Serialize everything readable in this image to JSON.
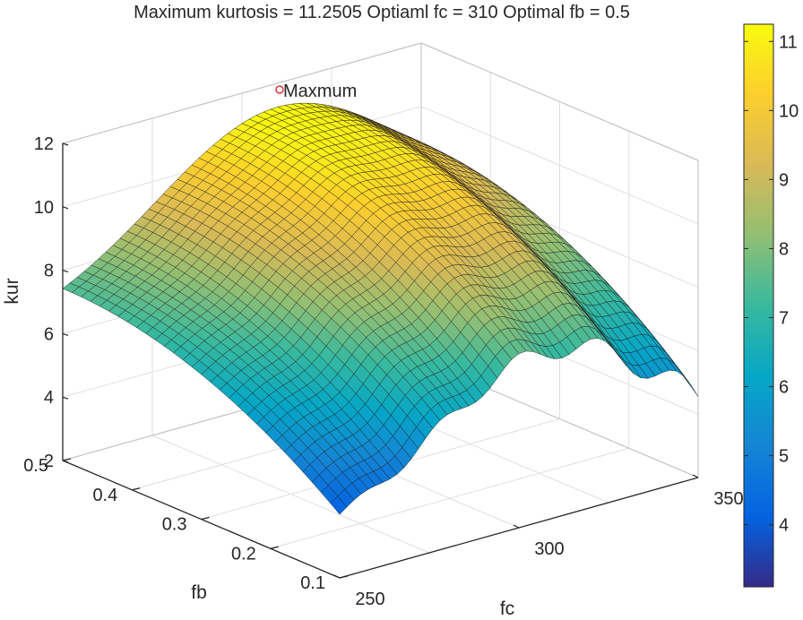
{
  "chart_data": {
    "type": "surface",
    "title": "Maximum kurtosis = 11.2505  Optiaml fc = 310  Optimal fb = 0.5",
    "xlabel": "fc",
    "ylabel": "fb",
    "zlabel": "kur",
    "xlim": [
      250,
      350
    ],
    "ylim": [
      0.1,
      0.5
    ],
    "zlim": [
      2,
      12
    ],
    "x_ticks": [
      "250",
      "300",
      "350"
    ],
    "y_ticks": [
      "0.1",
      "0.2",
      "0.3",
      "0.4",
      "0.5"
    ],
    "z_ticks": [
      "2",
      "4",
      "6",
      "8",
      "10",
      "12"
    ],
    "grid": true,
    "maximum": {
      "label": "Maxmum",
      "fc": 310,
      "fb": 0.5,
      "kur": 11.2505
    },
    "colorbar": {
      "colormap": "parula",
      "range": [
        3.1,
        11.25
      ],
      "ticks": [
        "4",
        "5",
        "6",
        "7",
        "8",
        "9",
        "10",
        "11"
      ]
    },
    "surface_corner_values": [
      {
        "fc": 250,
        "fb": 0.5,
        "kur": 6.4
      },
      {
        "fc": 310,
        "fb": 0.5,
        "kur": 11.25
      },
      {
        "fc": 350,
        "fb": 0.5,
        "kur": 7.4
      },
      {
        "fc": 250,
        "fb": 0.1,
        "kur": 3.0
      },
      {
        "fc": 350,
        "fb": 0.1,
        "kur": 3.1
      }
    ]
  }
}
